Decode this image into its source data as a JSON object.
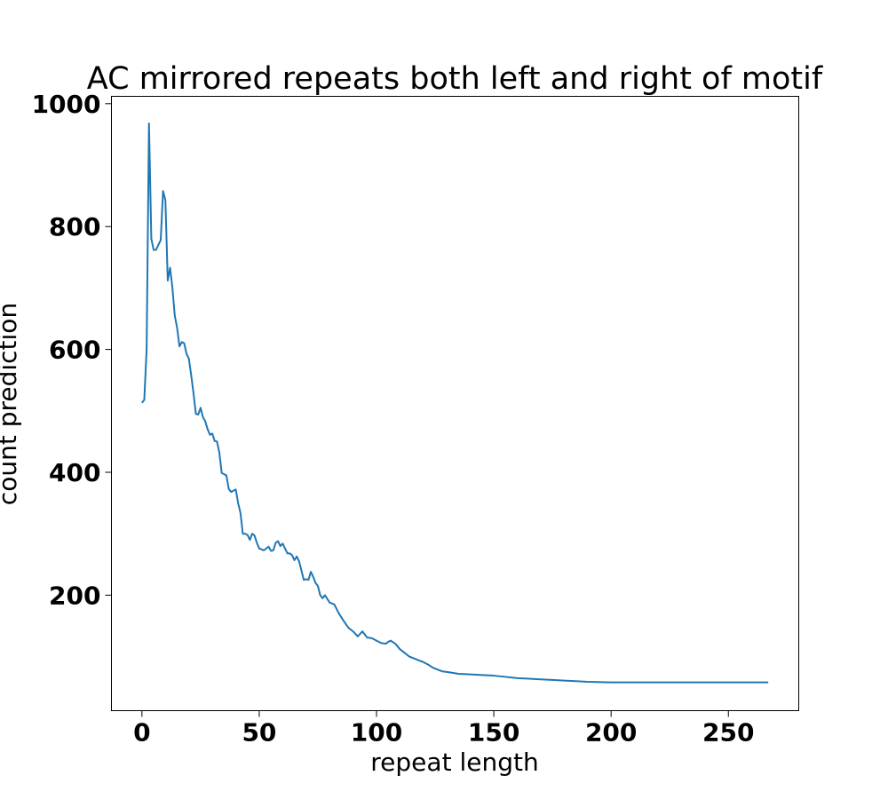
{
  "chart_data": {
    "type": "line",
    "title": "AC mirrored repeats both left and right of motif",
    "xlabel": "repeat length",
    "ylabel": "count prediction",
    "xlim": [
      -13,
      280
    ],
    "ylim": [
      12,
      1012
    ],
    "xticks": [
      0,
      50,
      100,
      150,
      200,
      250
    ],
    "yticks": [
      200,
      400,
      600,
      800,
      1000
    ],
    "grid": false,
    "line_color": "#1f77b4",
    "series": [
      {
        "x": [
          0,
          1,
          2,
          3,
          4,
          5,
          6,
          7,
          8,
          9,
          10,
          11,
          12,
          13,
          14,
          15,
          16,
          17,
          18,
          19,
          20,
          21,
          22,
          23,
          24,
          25,
          26,
          27,
          28,
          29,
          30,
          31,
          32,
          33,
          34,
          35,
          36,
          37,
          38,
          39,
          40,
          41,
          42,
          43,
          44,
          45,
          46,
          47,
          48,
          49,
          50,
          52,
          54,
          55,
          56,
          57,
          58,
          59,
          60,
          62,
          63,
          64,
          65,
          66,
          67,
          68,
          69,
          70,
          71,
          72,
          73,
          74,
          75,
          76,
          77,
          78,
          80,
          82,
          84,
          86,
          88,
          90,
          92,
          94,
          96,
          98,
          100,
          102,
          104,
          105,
          106,
          108,
          110,
          112,
          114,
          116,
          118,
          120,
          122,
          124,
          126,
          128,
          130,
          135,
          140,
          145,
          150,
          155,
          160,
          165,
          170,
          175,
          180,
          185,
          190,
          200,
          210,
          220,
          230,
          240,
          250,
          260,
          267
        ],
        "values": [
          513,
          518,
          600,
          968,
          780,
          762,
          762,
          770,
          778,
          858,
          843,
          712,
          733,
          700,
          655,
          635,
          605,
          612,
          610,
          593,
          585,
          558,
          528,
          495,
          494,
          505,
          490,
          483,
          470,
          461,
          463,
          451,
          450,
          432,
          399,
          397,
          395,
          373,
          368,
          370,
          372,
          350,
          334,
          300,
          300,
          298,
          290,
          300,
          297,
          285,
          276,
          273,
          279,
          272,
          273,
          285,
          288,
          280,
          284,
          268,
          268,
          265,
          257,
          263,
          255,
          240,
          225,
          226,
          225,
          238,
          230,
          220,
          215,
          200,
          195,
          200,
          188,
          185,
          170,
          158,
          147,
          141,
          133,
          141,
          131,
          130,
          126,
          122,
          121,
          124,
          126,
          121,
          112,
          106,
          100,
          97,
          94,
          91,
          87,
          82,
          79,
          76,
          75,
          72,
          71,
          70,
          69,
          67,
          65,
          64,
          63,
          62,
          61,
          60,
          59,
          58,
          58,
          58,
          58,
          58,
          58,
          58,
          58
        ]
      }
    ]
  }
}
